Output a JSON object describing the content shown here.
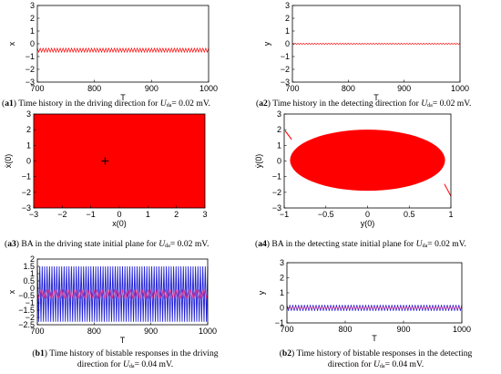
{
  "captions": {
    "a1": {
      "tag": "a1",
      "text": " Time history in the driving direction for ",
      "var": "U",
      "sub": "da",
      "val": "= 0.02 mV."
    },
    "a2": {
      "tag": "a2",
      "text": " Time history in the detecting direction for ",
      "var": "U",
      "sub": "da",
      "val": "= 0.02 mV."
    },
    "a3": {
      "tag": "a3",
      "text": " BA in the driving state initial plane for ",
      "var": "U",
      "sub": "da",
      "val": "= 0.02 mV."
    },
    "a4": {
      "tag": "a4",
      "text": " BA in the detecting state initial plane for ",
      "var": "U",
      "sub": "da",
      "val": "= 0.02 mV."
    },
    "b1": {
      "tag": "b1",
      "line1": " Time history of bistable responses in the driving",
      "line2": "direction for ",
      "var": "U",
      "sub": "da",
      "val": "= 0.04 mV."
    },
    "b2": {
      "tag": "b2",
      "line1": " Time history of bistable responses in the detecting",
      "line2": "direction for ",
      "var": "U",
      "sub": "da",
      "val": "= 0.04 mV."
    }
  },
  "colors": {
    "red": "#ff0000",
    "blue": "#1f1fd6",
    "magenta": "#e0308c",
    "black": "#000000"
  },
  "chart_data": [
    {
      "id": "a1",
      "type": "line",
      "xlabel": "T",
      "ylabel": "x",
      "xlim": [
        700,
        1000
      ],
      "ylim": [
        -3,
        3
      ],
      "xticks": [
        700,
        800,
        900,
        1000
      ],
      "yticks": [
        -3,
        -2,
        -1,
        0,
        1,
        2,
        3
      ],
      "series": [
        {
          "color": "#ff0000",
          "center": -0.5,
          "amplitude": 0.15
        }
      ]
    },
    {
      "id": "a2",
      "type": "line",
      "xlabel": "T",
      "ylabel": "y",
      "xlim": [
        700,
        1000
      ],
      "ylim": [
        -3,
        3
      ],
      "xticks": [
        700,
        800,
        900,
        1000
      ],
      "yticks": [
        -3,
        -2,
        -1,
        0,
        1,
        2,
        3
      ],
      "series": [
        {
          "color": "#ff0000",
          "center": 0.0,
          "amplitude": 0.05
        }
      ]
    },
    {
      "id": "a3",
      "type": "scatter",
      "xlabel": "x(0)",
      "ylabel": "ẋ(0)",
      "xlim": [
        -3,
        3
      ],
      "ylim": [
        -3,
        3
      ],
      "xticks": [
        -3,
        -2,
        -1,
        0,
        1,
        2,
        3
      ],
      "yticks": [
        -3,
        -2,
        -1,
        0,
        1,
        2,
        3
      ],
      "region": {
        "shape": "rectangle",
        "x": [
          -3,
          3
        ],
        "y": [
          -3,
          3
        ],
        "color": "#ff0000"
      },
      "marker": {
        "x": -0.5,
        "y": 0,
        "symbol": "+",
        "color": "#000000"
      }
    },
    {
      "id": "a4",
      "type": "scatter",
      "xlabel": "y(0)",
      "ylabel": "ẏ(0)",
      "xlim": [
        -1,
        1
      ],
      "ylim": [
        -3,
        3
      ],
      "xticks": [
        -1,
        -0.5,
        0,
        0.5,
        1
      ],
      "yticks": [
        -3,
        -2,
        -1,
        0,
        1,
        2,
        3
      ],
      "region": {
        "shape": "ellipse",
        "x": [
          -0.93,
          0.93
        ],
        "y": [
          -1.9,
          2.0
        ],
        "color": "#ff0000"
      }
    },
    {
      "id": "b1",
      "type": "line",
      "xlabel": "T",
      "ylabel": "x",
      "xlim": [
        700,
        1000
      ],
      "ylim": [
        -2.5,
        2
      ],
      "xticks": [
        700,
        800,
        900,
        1000
      ],
      "yticks": [
        -2.5,
        -2,
        -1.5,
        -1,
        -0.5,
        0,
        0.5,
        1,
        1.5,
        2
      ],
      "series": [
        {
          "color": "#1f1fd6",
          "center": -0.4,
          "amplitude": 1.9
        },
        {
          "color": "#e0308c",
          "center": -0.4,
          "amplitude": 0.3
        }
      ]
    },
    {
      "id": "b2",
      "type": "line",
      "xlabel": "T",
      "ylabel": "y",
      "xlim": [
        700,
        1000
      ],
      "ylim": [
        -1,
        3
      ],
      "xticks": [
        700,
        800,
        900,
        1000
      ],
      "yticks": [
        -1,
        0,
        1,
        2,
        3
      ],
      "series": [
        {
          "color": "#1f1fd6",
          "center": 0.0,
          "amplitude": 0.2
        },
        {
          "color": "#e0308c",
          "center": 0.0,
          "amplitude": 0.05
        }
      ]
    }
  ]
}
